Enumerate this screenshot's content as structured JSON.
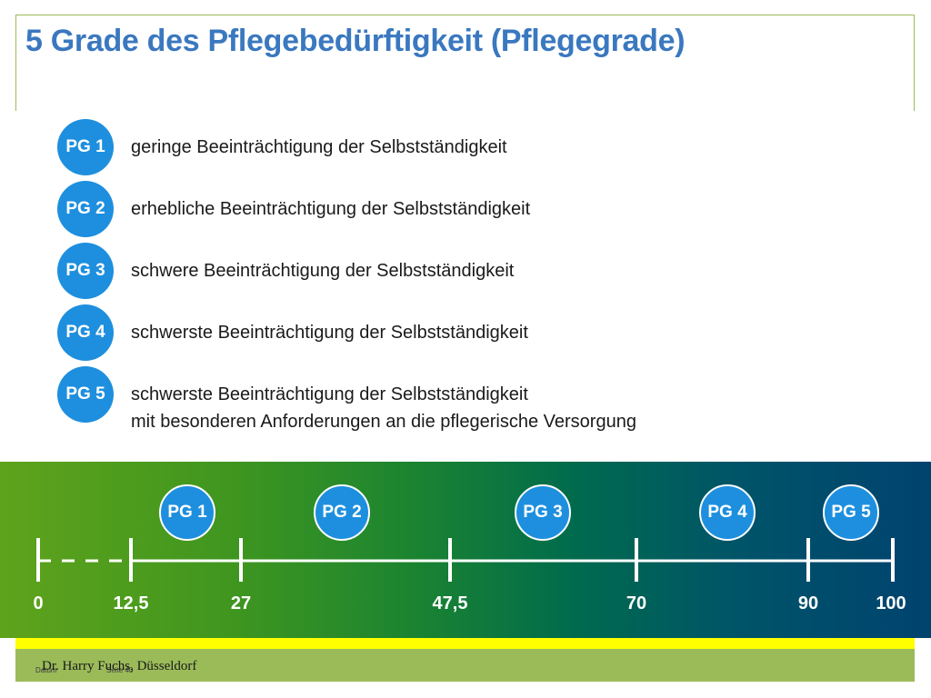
{
  "title": "5 Grade des Pflegebedürftigkeit (Pflegegrade)",
  "levels": [
    {
      "badge": "PG 1",
      "text": "geringe Beeinträchtigung der Selbstständigkeit"
    },
    {
      "badge": "PG 2",
      "text": "erhebliche Beeinträchtigung der Selbstständigkeit"
    },
    {
      "badge": "PG 3",
      "text": "schwere Beeinträchtigung der Selbstständigkeit"
    },
    {
      "badge": "PG 4",
      "text": "schwerste Beeinträchtigung der Selbstständigkeit"
    },
    {
      "badge": "PG 5",
      "text": "schwerste Beeinträchtigung der Selbstständigkeit",
      "text2": "mit besonderen Anforderungen an die pflegerische Versorgung"
    }
  ],
  "scale": {
    "ticks": [
      "0",
      "12,5",
      "27",
      "47,5",
      "70",
      "90",
      "100"
    ],
    "markers": [
      "PG 1",
      "PG 2",
      "PG 3",
      "PG 4",
      "PG 5"
    ]
  },
  "footer": {
    "author": "Dr. Harry Fuchs, Düsseldorf",
    "small_left": "Datum",
    "small_right": "Seite 40"
  },
  "colors": {
    "title": "#3a78bf",
    "badge": "#1e8fde",
    "frame": "#9bbb59",
    "band_start": "#5fa31c",
    "band_end": "#00436f",
    "highlight": "#ffff00"
  }
}
